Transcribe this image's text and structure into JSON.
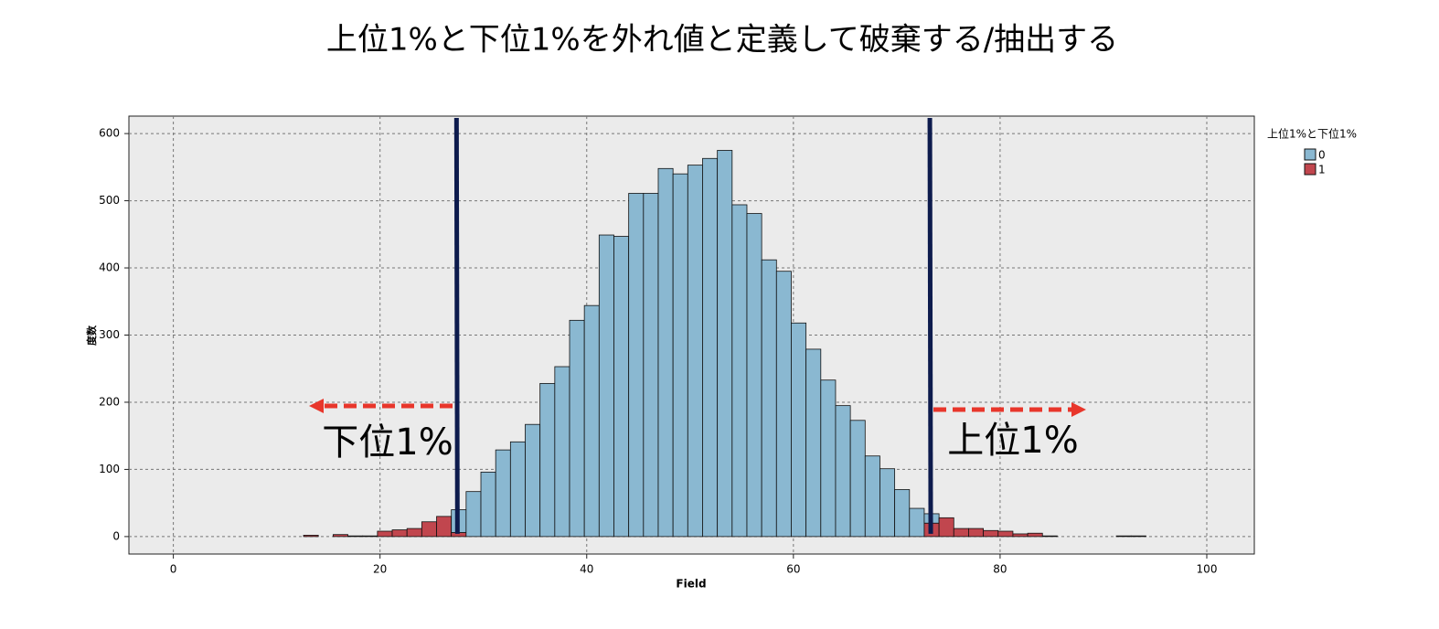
{
  "chart_data": {
    "type": "stacked-histogram",
    "title": "上位1%と下位1%を外れ値と定義して破棄する/抽出する",
    "x_label": "Field",
    "y_label": "度数",
    "legend_title": "上位1%と下位1%",
    "legend": "right-top",
    "bins": [
      12.6,
      14.03,
      15.46,
      16.89,
      18.32,
      19.75,
      21.18,
      22.61,
      24.04,
      25.47,
      26.9,
      28.33,
      29.76,
      31.19,
      32.62,
      34.05,
      35.48,
      36.91,
      38.34,
      39.77,
      41.2,
      42.63,
      44.06,
      45.49,
      46.92,
      48.35,
      49.78,
      51.21,
      52.64,
      54.07,
      55.5,
      56.93,
      58.36,
      59.79,
      61.22,
      62.65,
      64.08,
      65.51,
      66.94,
      68.37,
      69.8,
      71.23,
      72.66,
      74.09,
      75.52,
      76.95,
      78.38,
      79.81,
      81.24,
      82.67,
      84.1,
      85.53,
      86.96,
      88.39,
      89.82,
      91.25,
      92.68,
      94.11
    ],
    "series": [
      {
        "name": "1",
        "color": "#c1464e",
        "values": [
          2,
          0,
          3,
          1,
          1,
          8,
          10,
          12,
          22,
          30,
          6,
          0,
          0,
          0,
          0,
          0,
          0,
          0,
          0,
          0,
          0,
          0,
          0,
          0,
          0,
          0,
          0,
          0,
          0,
          0,
          0,
          0,
          0,
          0,
          0,
          0,
          0,
          0,
          0,
          0,
          0,
          0,
          20,
          28,
          12,
          12,
          9,
          8,
          4,
          5,
          1,
          0,
          0,
          0,
          0,
          1,
          1
        ]
      },
      {
        "name": "0",
        "color": "#8ab8d1",
        "values": [
          0,
          0,
          0,
          0,
          0,
          0,
          0,
          0,
          0,
          0,
          34,
          67,
          96,
          129,
          141,
          167,
          228,
          253,
          322,
          344,
          449,
          447,
          511,
          511,
          548,
          540,
          553,
          563,
          575,
          494,
          481,
          412,
          395,
          318,
          279,
          233,
          195,
          173,
          120,
          101,
          70,
          42,
          14,
          0,
          0,
          0,
          0,
          0,
          0,
          0,
          0,
          0,
          0,
          0,
          0,
          0,
          0
        ]
      }
    ],
    "reference_lines": [
      27.4,
      73.2
    ],
    "annotations": [
      "下位1%",
      "上位1%"
    ],
    "xlim": [
      -4.3,
      104.6
    ],
    "ylim": [
      -26,
      626
    ],
    "xticks": [
      0,
      20,
      40,
      60,
      80,
      100
    ],
    "yticks": [
      0,
      100,
      200,
      300,
      400,
      500,
      600
    ],
    "grid": true
  }
}
